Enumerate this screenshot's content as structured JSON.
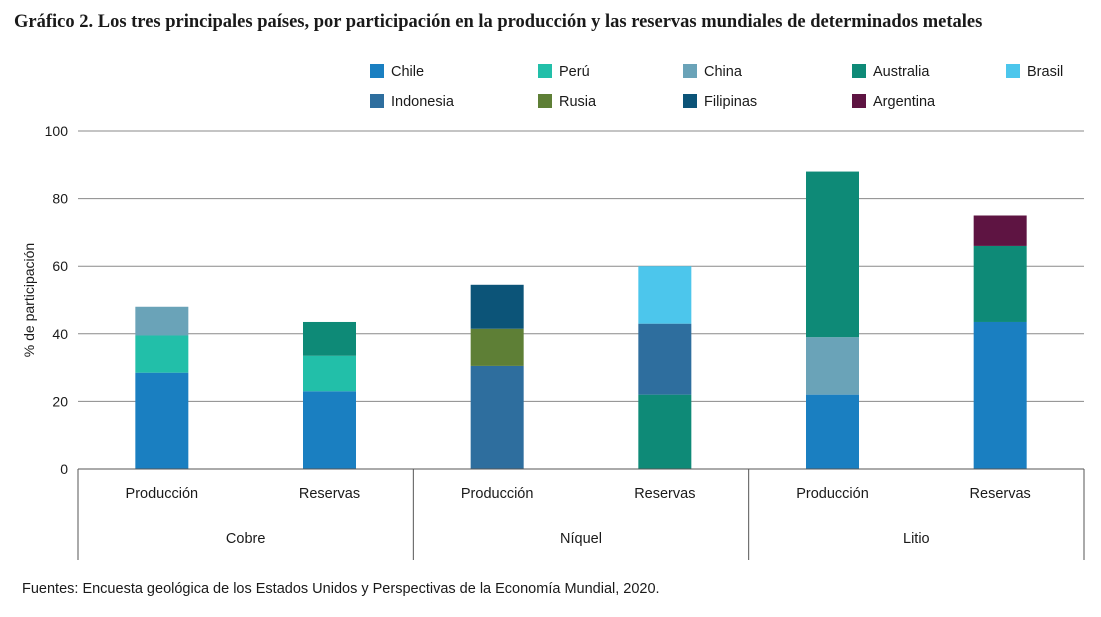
{
  "title": "Gráfico 2. Los tres principales países, por participación en la producción y las reservas mundiales de determinados metales",
  "source": "Fuentes: Encuesta geológica de los Estados Unidos y Perspectivas de la Economía Mundial, 2020.",
  "chart_data": {
    "type": "bar",
    "stacked": true,
    "ylabel": "% de participación",
    "xlabel": "",
    "ylim": [
      0,
      100
    ],
    "yticks": [
      0,
      20,
      40,
      60,
      80,
      100
    ],
    "grid": true,
    "legend_position": "top",
    "groups": [
      "Cobre",
      "Níquel",
      "Litio"
    ],
    "categories": [
      "Producción",
      "Reservas",
      "Producción",
      "Reservas",
      "Producción",
      "Reservas"
    ],
    "category_group": [
      0,
      0,
      1,
      1,
      2,
      2
    ],
    "series": [
      {
        "name": "Chile",
        "color": "#1a7fc1",
        "values": [
          28.5,
          23,
          0,
          0,
          22,
          43.5
        ]
      },
      {
        "name": "Perú",
        "color": "#22bfa9",
        "values": [
          11,
          10.5,
          0,
          0,
          0,
          0
        ]
      },
      {
        "name": "China",
        "color": "#6aa3b8",
        "values": [
          8.5,
          0,
          0,
          0,
          17,
          0
        ]
      },
      {
        "name": "Australia",
        "color": "#0e8a77",
        "values": [
          0,
          10,
          0,
          22,
          49,
          22.5
        ]
      },
      {
        "name": "Brasil",
        "color": "#4cc6ec",
        "values": [
          0,
          0,
          0,
          17,
          0,
          0
        ]
      },
      {
        "name": "Indonesia",
        "color": "#2e6e9e",
        "values": [
          0,
          0,
          30.5,
          21,
          0,
          0
        ]
      },
      {
        "name": "Rusia",
        "color": "#5e7f36",
        "values": [
          0,
          0,
          11,
          0,
          0,
          0
        ]
      },
      {
        "name": "Filipinas",
        "color": "#0c5478",
        "values": [
          0,
          0,
          13,
          0,
          0,
          0
        ]
      },
      {
        "name": "Argentina",
        "color": "#5e1442",
        "values": [
          0,
          0,
          0,
          0,
          0,
          9
        ]
      }
    ],
    "stack_order": [
      [
        "Chile",
        "Perú",
        "China"
      ],
      [
        "Chile",
        "Perú",
        "Australia"
      ],
      [
        "Indonesia",
        "Rusia",
        "Filipinas"
      ],
      [
        "Australia",
        "Indonesia",
        "Brasil"
      ],
      [
        "Chile",
        "China",
        "Australia"
      ],
      [
        "Chile",
        "Australia",
        "Argentina"
      ]
    ]
  }
}
